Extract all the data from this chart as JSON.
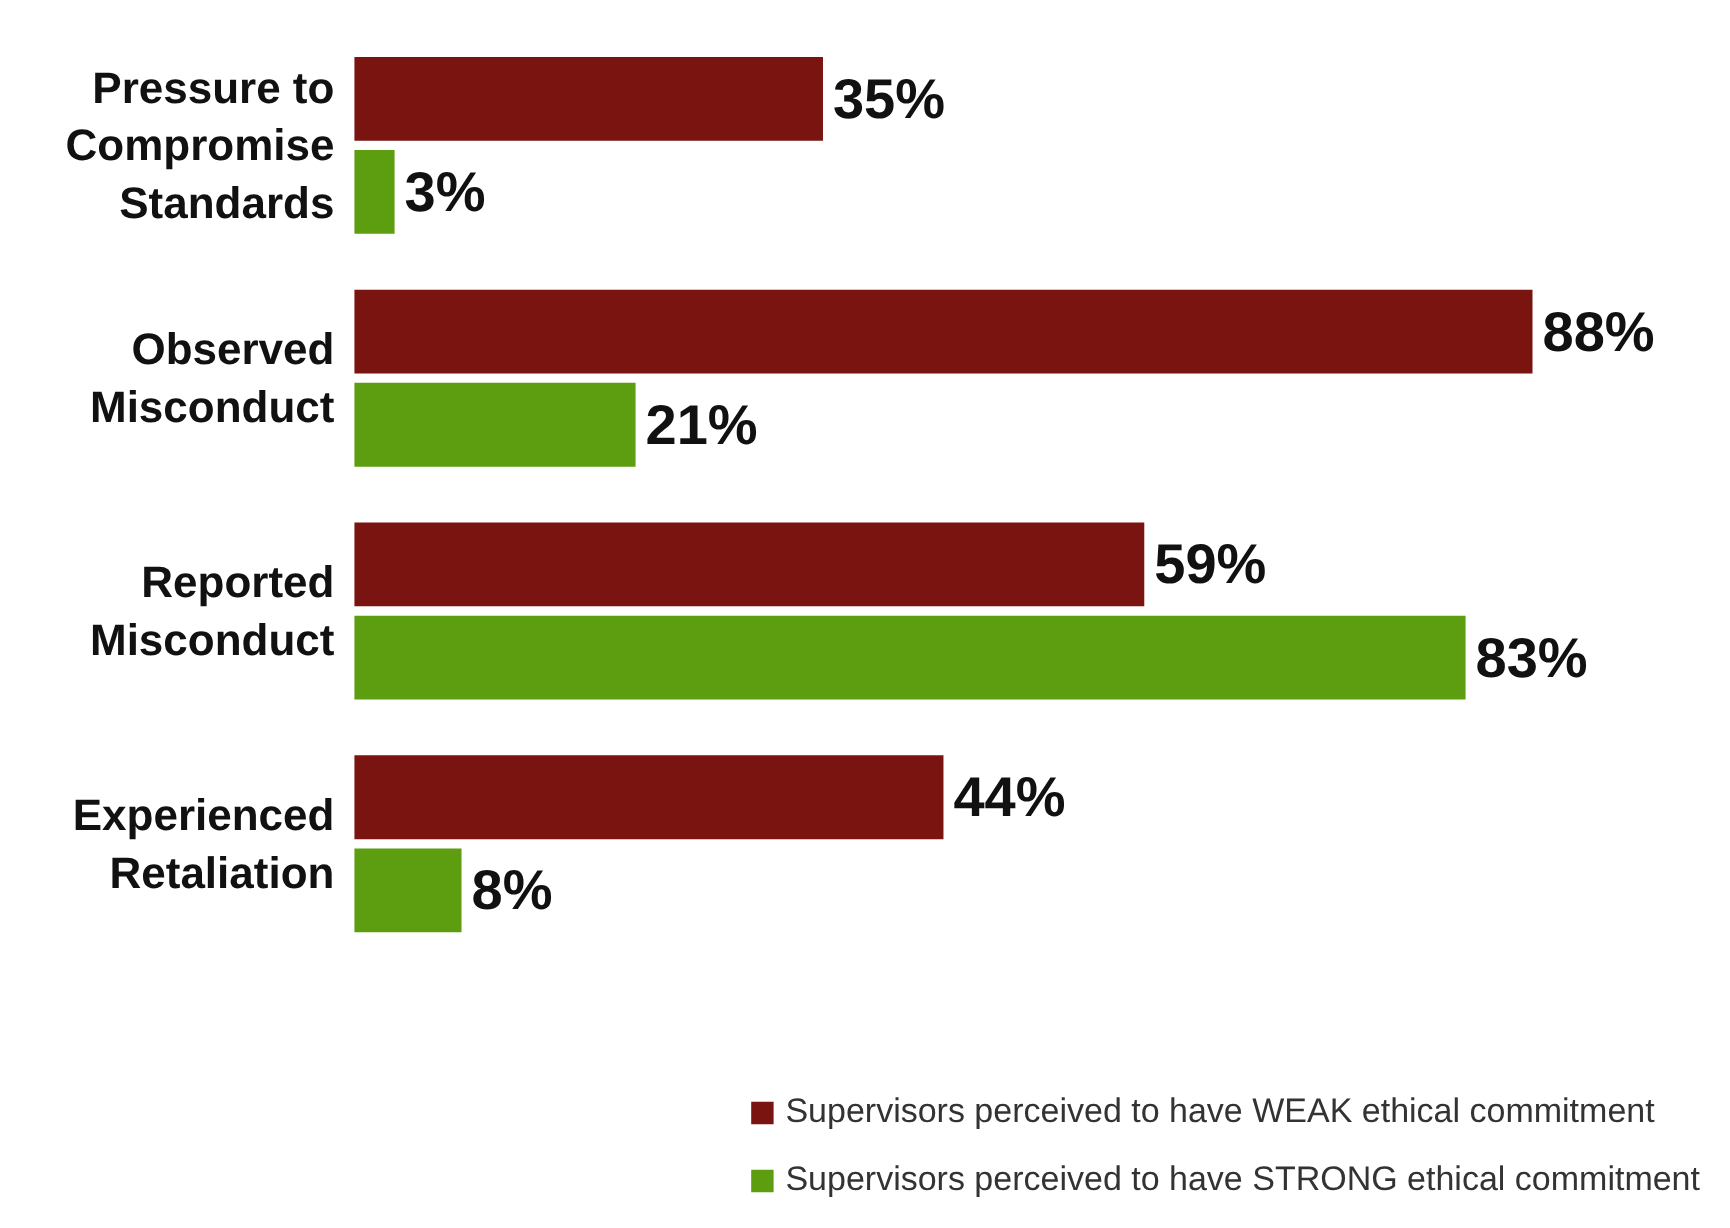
{
  "chart_data": {
    "type": "bar",
    "orientation": "horizontal",
    "categories": [
      "Pressure to\nCompromise\nStandards",
      "Observed\nMisconduct",
      "Reported\nMisconduct",
      "Experienced\nRetaliation"
    ],
    "series": [
      {
        "name": "Supervisors perceived to have WEAK ethical commitment",
        "color": "#7a1410",
        "values": [
          35,
          88,
          59,
          44
        ],
        "value_labels": [
          "35%",
          "88%",
          "59%",
          "44%"
        ]
      },
      {
        "name": "Supervisors perceived to have STRONG ethical commitment",
        "color": "#5c9e0f",
        "values": [
          3,
          21,
          83,
          8
        ],
        "value_labels": [
          "3%",
          "21%",
          "83%",
          "8%"
        ]
      }
    ],
    "legend": "bottom"
  }
}
